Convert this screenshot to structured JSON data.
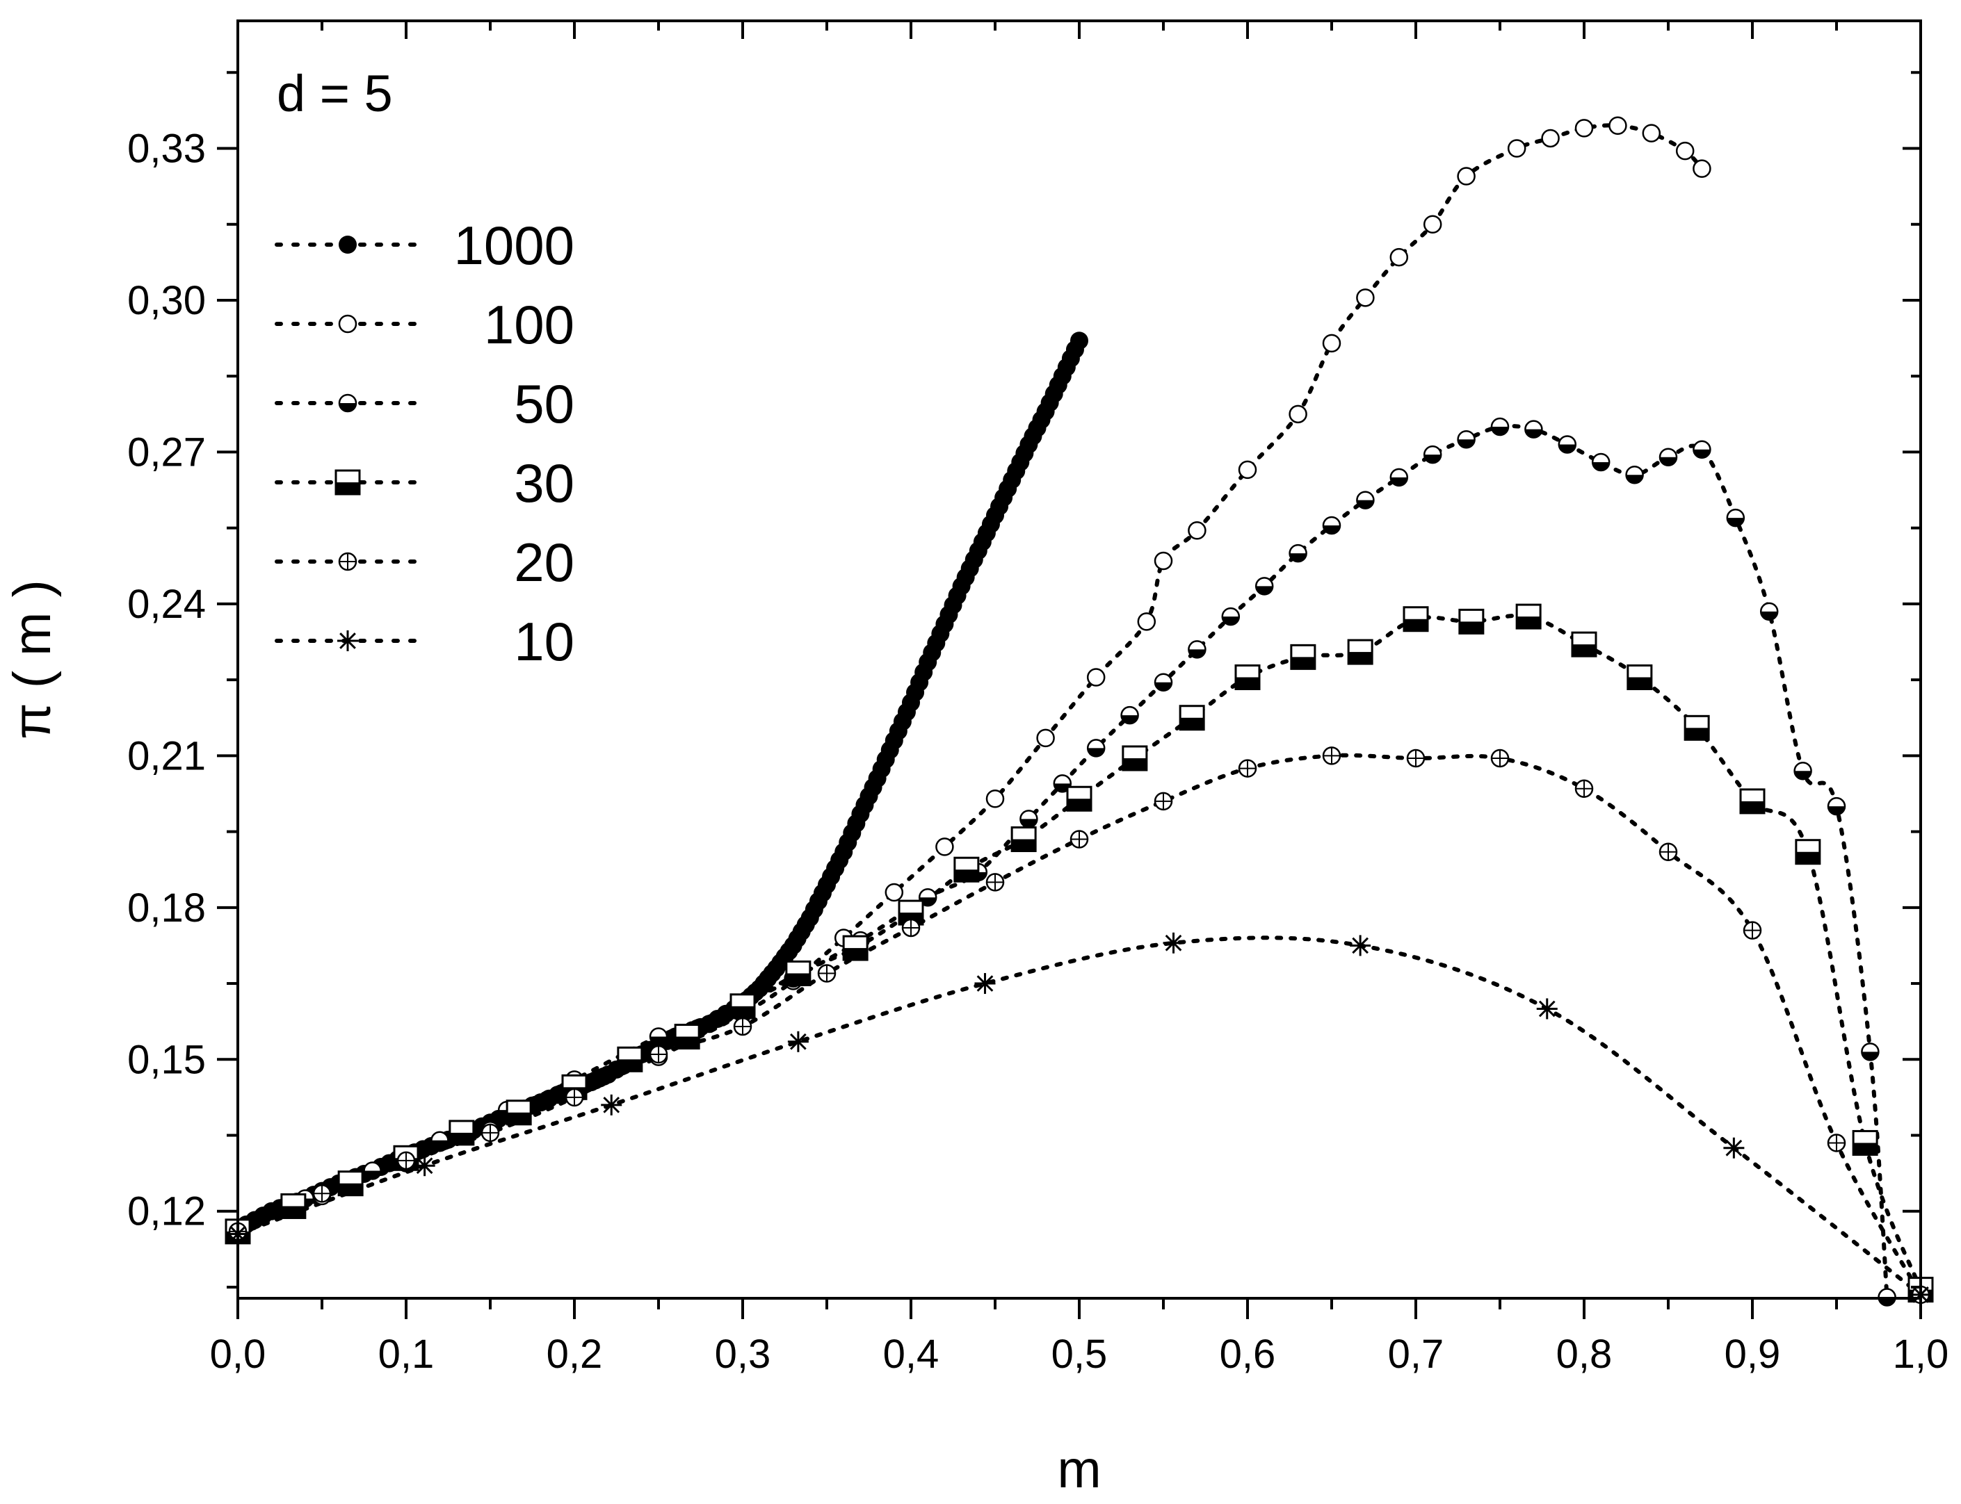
{
  "chart_data": {
    "type": "scatter",
    "annotation": "d = 5",
    "xlabel": "m",
    "ylabel": "π ( m )",
    "xlim": [
      0.0,
      1.0
    ],
    "ylim": [
      0.1028,
      0.3552
    ],
    "xticks": [
      {
        "value": 0.0,
        "label": "0,0"
      },
      {
        "value": 0.1,
        "label": "0,1"
      },
      {
        "value": 0.2,
        "label": "0,2"
      },
      {
        "value": 0.3,
        "label": "0,3"
      },
      {
        "value": 0.4,
        "label": "0,4"
      },
      {
        "value": 0.5,
        "label": "0,5"
      },
      {
        "value": 0.6,
        "label": "0,6"
      },
      {
        "value": 0.7,
        "label": "0,7"
      },
      {
        "value": 0.8,
        "label": "0,8"
      },
      {
        "value": 0.9,
        "label": "0,9"
      },
      {
        "value": 1.0,
        "label": "1,0"
      }
    ],
    "yticks": [
      {
        "value": 0.12,
        "label": "0,12"
      },
      {
        "value": 0.15,
        "label": "0,15"
      },
      {
        "value": 0.18,
        "label": "0,18"
      },
      {
        "value": 0.21,
        "label": "0,21"
      },
      {
        "value": 0.24,
        "label": "0,24"
      },
      {
        "value": 0.27,
        "label": "0,27"
      },
      {
        "value": 0.3,
        "label": "0,30"
      },
      {
        "value": 0.33,
        "label": "0,33"
      }
    ],
    "legend_position": "top-left",
    "series": [
      {
        "name": "1000",
        "marker": "filled-circle",
        "x": [
          0.0,
          0.02,
          0.04,
          0.06,
          0.08,
          0.1,
          0.12,
          0.14,
          0.16,
          0.18,
          0.2,
          0.21,
          0.22,
          0.24,
          0.26,
          0.28,
          0.3,
          0.31,
          0.32,
          0.33,
          0.34,
          0.35,
          0.36,
          0.37,
          0.38,
          0.39,
          0.4,
          0.41,
          0.42,
          0.43,
          0.44,
          0.45,
          0.46,
          0.47,
          0.48,
          0.49,
          0.5
        ],
        "y": [
          0.1165,
          0.12,
          0.1225,
          0.1255,
          0.128,
          0.131,
          0.1335,
          0.136,
          0.139,
          0.1415,
          0.1445,
          0.1455,
          0.147,
          0.151,
          0.1545,
          0.157,
          0.161,
          0.164,
          0.168,
          0.1725,
          0.178,
          0.1845,
          0.191,
          0.1985,
          0.2055,
          0.213,
          0.2205,
          0.2285,
          0.236,
          0.2435,
          0.2505,
          0.2575,
          0.2645,
          0.2715,
          0.278,
          0.285,
          0.292
        ]
      },
      {
        "name": "100",
        "marker": "open-circle",
        "x": [
          0.0,
          0.05,
          0.1,
          0.15,
          0.2,
          0.25,
          0.3,
          0.33,
          0.36,
          0.39,
          0.42,
          0.45,
          0.48,
          0.51,
          0.54,
          0.55,
          0.57,
          0.6,
          0.63,
          0.65,
          0.67,
          0.69,
          0.71,
          0.73,
          0.76,
          0.78,
          0.8,
          0.82,
          0.84,
          0.86,
          0.87
        ],
        "y": [
          0.116,
          0.123,
          0.1295,
          0.136,
          0.143,
          0.1505,
          0.159,
          0.1655,
          0.174,
          0.183,
          0.192,
          0.2015,
          0.2135,
          0.2255,
          0.2365,
          0.2485,
          0.2545,
          0.2665,
          0.2775,
          0.2915,
          0.3005,
          0.3085,
          0.315,
          0.3245,
          0.33,
          0.332,
          0.334,
          0.3345,
          0.333,
          0.3295,
          0.326
        ]
      },
      {
        "name": "50",
        "marker": "half-circle",
        "x": [
          0.0,
          0.04,
          0.08,
          0.12,
          0.16,
          0.2,
          0.25,
          0.3,
          0.33,
          0.37,
          0.41,
          0.44,
          0.47,
          0.49,
          0.51,
          0.53,
          0.55,
          0.57,
          0.59,
          0.61,
          0.63,
          0.65,
          0.67,
          0.69,
          0.71,
          0.73,
          0.75,
          0.77,
          0.79,
          0.81,
          0.83,
          0.85,
          0.87,
          0.89,
          0.91,
          0.93,
          0.95,
          0.97,
          0.98
        ],
        "y": [
          0.1165,
          0.1225,
          0.128,
          0.134,
          0.14,
          0.146,
          0.1545,
          0.161,
          0.166,
          0.1735,
          0.182,
          0.187,
          0.1975,
          0.2045,
          0.2115,
          0.218,
          0.2245,
          0.231,
          0.2375,
          0.2435,
          0.25,
          0.2555,
          0.2605,
          0.265,
          0.2695,
          0.2725,
          0.275,
          0.2745,
          0.2715,
          0.268,
          0.2655,
          0.269,
          0.2705,
          0.257,
          0.2385,
          0.207,
          0.2,
          0.1515,
          0.103
        ]
      },
      {
        "name": "30",
        "marker": "half-square",
        "x": [
          0.0,
          0.033,
          0.067,
          0.1,
          0.133,
          0.167,
          0.2,
          0.233,
          0.267,
          0.3,
          0.333,
          0.367,
          0.4,
          0.433,
          0.467,
          0.5,
          0.533,
          0.567,
          0.6,
          0.633,
          0.667,
          0.7,
          0.733,
          0.767,
          0.8,
          0.833,
          0.867,
          0.9,
          0.933,
          0.967,
          1.0
        ],
        "y": [
          0.116,
          0.121,
          0.1255,
          0.1305,
          0.1355,
          0.1395,
          0.1445,
          0.15,
          0.1545,
          0.1605,
          0.167,
          0.172,
          0.179,
          0.1875,
          0.1935,
          0.2015,
          0.2095,
          0.2175,
          0.2255,
          0.2295,
          0.2305,
          0.237,
          0.2365,
          0.2375,
          0.232,
          0.2255,
          0.2155,
          0.201,
          0.191,
          0.1335,
          0.1045
        ]
      },
      {
        "name": "20",
        "marker": "circle-plus",
        "x": [
          0.0,
          0.05,
          0.1,
          0.15,
          0.2,
          0.25,
          0.3,
          0.35,
          0.4,
          0.45,
          0.5,
          0.55,
          0.6,
          0.65,
          0.7,
          0.75,
          0.8,
          0.85,
          0.9,
          0.95,
          1.0
        ],
        "y": [
          0.116,
          0.1235,
          0.13,
          0.1355,
          0.1425,
          0.151,
          0.1565,
          0.167,
          0.176,
          0.185,
          0.1935,
          0.201,
          0.2075,
          0.21,
          0.2095,
          0.2095,
          0.2035,
          0.191,
          0.1755,
          0.1335,
          0.1035
        ]
      },
      {
        "name": "10",
        "marker": "star",
        "x": [
          0.0,
          0.111,
          0.222,
          0.333,
          0.444,
          0.556,
          0.667,
          0.778,
          0.889,
          1.0
        ],
        "y": [
          0.1155,
          0.129,
          0.141,
          0.1535,
          0.165,
          0.173,
          0.1725,
          0.16,
          0.1325,
          0.1035
        ]
      }
    ]
  }
}
